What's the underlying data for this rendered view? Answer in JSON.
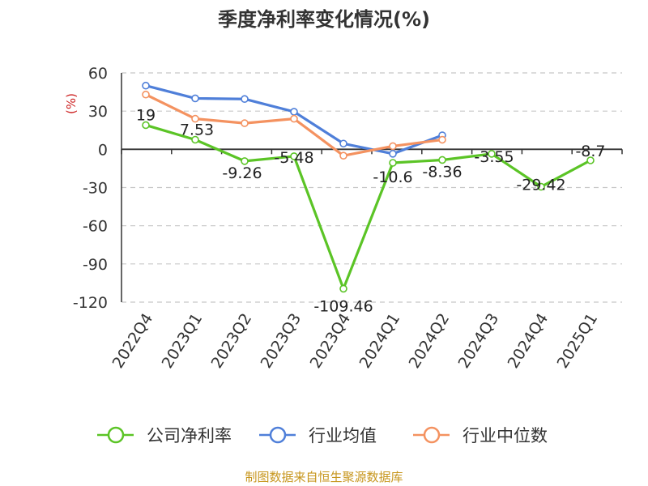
{
  "chart_data": {
    "type": "line",
    "title": "季度净利率变化情况(%)",
    "ylabel": "(%)",
    "categories": [
      "2022Q4",
      "2023Q1",
      "2023Q2",
      "2023Q3",
      "2023Q4",
      "2024Q1",
      "2024Q2",
      "2024Q3",
      "2024Q4",
      "2025Q1"
    ],
    "ylim": [
      -120,
      60
    ],
    "yticks": [
      60,
      30,
      0,
      -30,
      -60,
      -90,
      -120
    ],
    "grid": true,
    "legend_position": "bottom",
    "series": [
      {
        "name": "公司净利率",
        "color": "#5bc426",
        "values": [
          19,
          7.53,
          -9.26,
          -5.48,
          -109.46,
          -10.6,
          -8.36,
          -3.55,
          -29.42,
          -8.7
        ],
        "labels": [
          "19",
          "7.53",
          "-9.26",
          "-5.48",
          "-109.46",
          "-10.6",
          "-8.36",
          "-3.55",
          "-29.42",
          "-8.7"
        ],
        "show_labels": true
      },
      {
        "name": "行业均值",
        "color": "#4f7fd9",
        "values": [
          50,
          40,
          39.5,
          29.5,
          4.5,
          -3.5,
          11,
          null,
          null,
          null
        ]
      },
      {
        "name": "行业中位数",
        "color": "#f49260",
        "values": [
          43,
          24,
          20.5,
          24,
          -5,
          2.5,
          7.5,
          null,
          null,
          null
        ]
      }
    ]
  },
  "colors": {
    "ylabel": "#cc1f1f",
    "grid": "#c8c8c8",
    "axis": "#333333",
    "source": "#c7961d"
  },
  "footer": {
    "source": "制图数据来自恒生聚源数据库"
  }
}
